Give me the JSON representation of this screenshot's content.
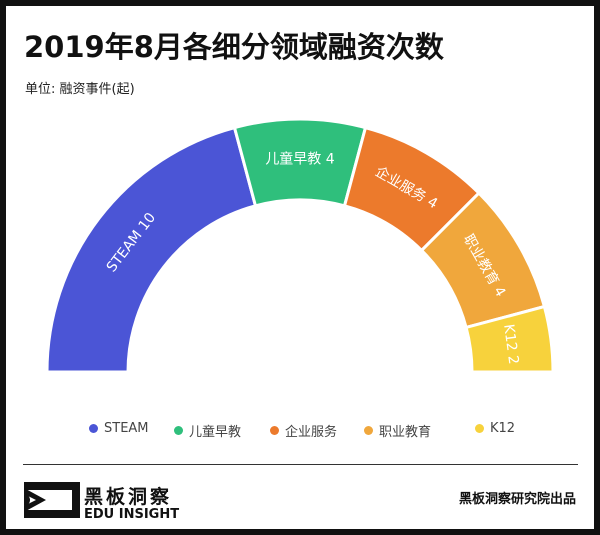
{
  "title": "2019年8月各细分领域融资次数",
  "unit_label": "单位: 融资事件(起)",
  "chart_data": {
    "type": "pie",
    "variant": "semicircle-donut",
    "title": "2019年8月各细分领域融资次数",
    "unit": "单位: 融资事件(起)",
    "categories": [
      "STEAM",
      "儿童早教",
      "企业服务",
      "职业教育",
      "K12"
    ],
    "values": [
      10,
      4,
      4,
      4,
      2
    ],
    "colors": [
      "#4b55d6",
      "#2fbf7c",
      "#ec7a2c",
      "#f0a73c",
      "#f7d23c"
    ],
    "data_labels": [
      "STEAM  10",
      "儿童早教  4",
      "企业服务  4",
      "职业教育  4",
      "K12  2"
    ],
    "legend_position": "bottom"
  },
  "footer": {
    "logo_cn": "黑板洞察",
    "logo_en": "EDU INSIGHT",
    "credit": "黑板洞察研究院出品"
  }
}
